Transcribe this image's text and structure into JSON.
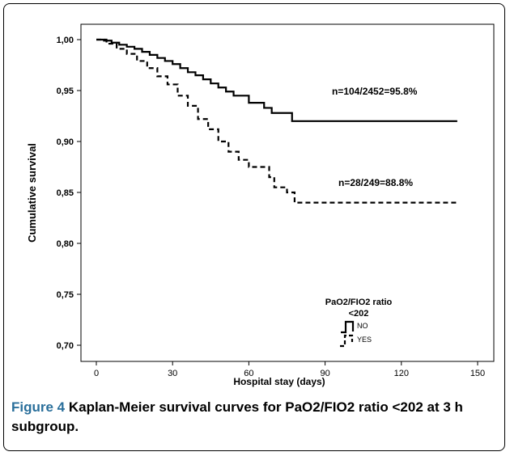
{
  "chart_data": {
    "type": "line",
    "subtype": "kaplan-meier-step",
    "xlabel": "Hospital stay (days)",
    "ylabel": "Cumulative survival",
    "xlim": [
      0,
      150
    ],
    "ylim": [
      0.7,
      1.0
    ],
    "xticks": [
      0,
      30,
      60,
      90,
      120,
      150
    ],
    "xtick_labels": [
      "0",
      "30",
      "60",
      "90",
      "120",
      "150"
    ],
    "yticks": [
      0.7,
      0.75,
      0.8,
      0.85,
      0.9,
      0.95,
      1.0
    ],
    "ytick_labels": [
      "0,70",
      "0,75",
      "0,80",
      "0,85",
      "0,90",
      "0,95",
      "1,00"
    ],
    "grid": false,
    "legend": {
      "title_line1": "PaO2/FIO2 ratio",
      "title_line2": "<202",
      "placement": "bottom-center"
    },
    "series": [
      {
        "name": "NO",
        "style": "solid",
        "annotation": "n=104/2452=95.8%",
        "points": [
          [
            0,
            1.0
          ],
          [
            3,
            0.999
          ],
          [
            6,
            0.997
          ],
          [
            9,
            0.995
          ],
          [
            12,
            0.993
          ],
          [
            15,
            0.991
          ],
          [
            18,
            0.988
          ],
          [
            21,
            0.985
          ],
          [
            24,
            0.982
          ],
          [
            27,
            0.979
          ],
          [
            30,
            0.976
          ],
          [
            33,
            0.972
          ],
          [
            36,
            0.968
          ],
          [
            39,
            0.965
          ],
          [
            42,
            0.961
          ],
          [
            45,
            0.957
          ],
          [
            48,
            0.953
          ],
          [
            51,
            0.949
          ],
          [
            54,
            0.945
          ],
          [
            60,
            0.938
          ],
          [
            66,
            0.933
          ],
          [
            69,
            0.928
          ],
          [
            72,
            0.928
          ],
          [
            77,
            0.92
          ],
          [
            142,
            0.92
          ]
        ]
      },
      {
        "name": "YES",
        "style": "dashed",
        "annotation": "n=28/249=88.8%",
        "points": [
          [
            0,
            1.0
          ],
          [
            4,
            0.996
          ],
          [
            8,
            0.991
          ],
          [
            12,
            0.986
          ],
          [
            16,
            0.979
          ],
          [
            20,
            0.972
          ],
          [
            24,
            0.964
          ],
          [
            28,
            0.956
          ],
          [
            32,
            0.945
          ],
          [
            36,
            0.935
          ],
          [
            40,
            0.922
          ],
          [
            44,
            0.912
          ],
          [
            48,
            0.9
          ],
          [
            52,
            0.89
          ],
          [
            56,
            0.882
          ],
          [
            60,
            0.875
          ],
          [
            68,
            0.865
          ],
          [
            70,
            0.855
          ],
          [
            75,
            0.85
          ],
          [
            78,
            0.84
          ],
          [
            142,
            0.84
          ]
        ]
      }
    ]
  },
  "caption": {
    "figure_label": "Figure 4",
    "text": " Kaplan-Meier survival curves for PaO2/FIO2 ratio <202 at 3 h subgroup."
  }
}
